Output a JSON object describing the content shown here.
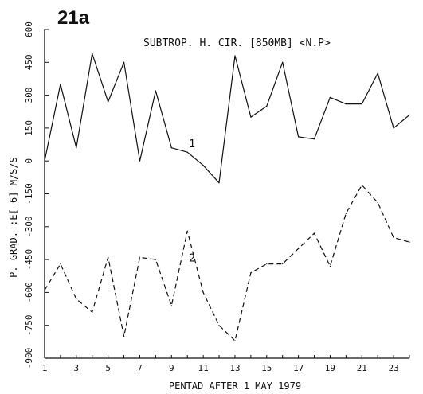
{
  "panel_label": "21a",
  "chart_data": {
    "type": "line",
    "title": "SUBTROP. H. CIR. [850MB] <N.P>",
    "xlabel": "PENTAD AFTER 1 MAY 1979",
    "ylabel": "P. GRAD. :E[-6] M/S/S",
    "xlim": [
      1,
      24
    ],
    "ylim": [
      -900,
      600
    ],
    "xticks": [
      1,
      3,
      5,
      7,
      9,
      11,
      13,
      15,
      17,
      19,
      21,
      23
    ],
    "yticks": [
      600,
      450,
      300,
      150,
      0,
      -150,
      -300,
      -450,
      -600,
      -750,
      -900
    ],
    "grid": false,
    "legend": "none",
    "x": [
      1,
      2,
      3,
      4,
      5,
      6,
      7,
      8,
      9,
      10,
      11,
      12,
      13,
      14,
      15,
      16,
      17,
      18,
      19,
      20,
      21,
      22,
      23,
      24
    ],
    "series": [
      {
        "name": "1",
        "line_style": "solid",
        "values": [
          0,
          350,
          60,
          490,
          270,
          450,
          0,
          320,
          60,
          40,
          -20,
          -100,
          480,
          200,
          250,
          450,
          110,
          100,
          290,
          260,
          260,
          400,
          150,
          210
        ]
      },
      {
        "name": "2",
        "line_style": "dashed",
        "values": [
          -590,
          -470,
          -630,
          -690,
          -440,
          -800,
          -440,
          -450,
          -660,
          -320,
          -600,
          -750,
          -820,
          -510,
          -470,
          -470,
          -400,
          -330,
          -480,
          -240,
          -110,
          -190,
          -350,
          -370
        ]
      }
    ]
  }
}
